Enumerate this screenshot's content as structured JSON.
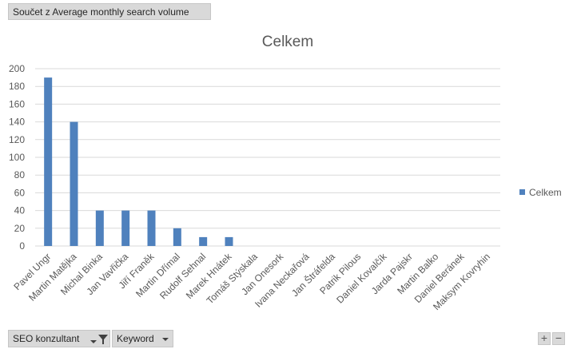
{
  "value_field": {
    "label": "Součet z Average monthly search volume"
  },
  "axis_fields": [
    {
      "label": "SEO konzultant",
      "filtered": true
    },
    {
      "label": "Keyword",
      "filtered": false
    }
  ],
  "zoom": {
    "plus": "+",
    "minus": "−"
  },
  "colors": {
    "series": "#4f81bd",
    "grid": "#d9d9d9",
    "text": "#595959",
    "field_bg": "#d9d9d9"
  },
  "chart_data": {
    "type": "bar",
    "title": "Celkem",
    "xlabel": "",
    "ylabel": "",
    "ylim": [
      0,
      200
    ],
    "yticks": [
      0,
      20,
      40,
      60,
      80,
      100,
      120,
      140,
      160,
      180,
      200
    ],
    "grid": true,
    "legend_position": "right",
    "categories": [
      "Pavel Ungr",
      "Martin Matějka",
      "Michal Binka",
      "Jan Vavřička",
      "Jiří Franěk",
      "Martin Dřímal",
      "Rudolf Sehnal",
      "Marek Hnátek",
      "Tomáš Stýskala",
      "Jan Onesork",
      "Ivana Neckařová",
      "Jan Štráfelda",
      "Patrik Pilous",
      "Daniel Kovalčík",
      "Jarda Pajskr",
      "Martin Balko",
      "Daniel Beránek",
      "Maksym Kovryhin"
    ],
    "series": [
      {
        "name": "Celkem",
        "values": [
          190,
          140,
          40,
          40,
          40,
          20,
          10,
          10,
          0,
          0,
          0,
          0,
          0,
          0,
          0,
          0,
          0,
          0
        ]
      }
    ]
  }
}
